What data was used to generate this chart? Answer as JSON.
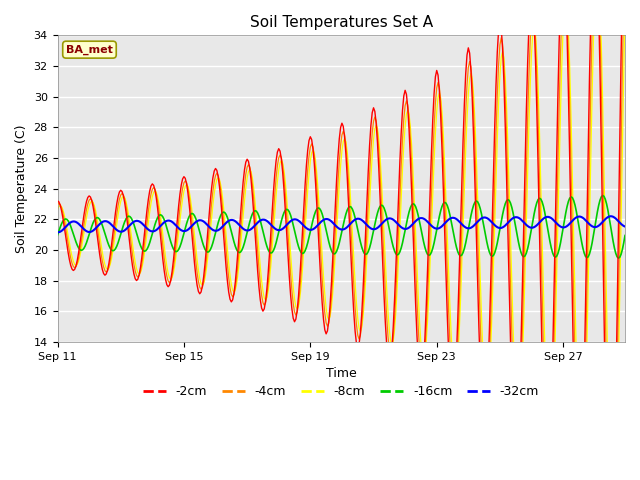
{
  "title": "Soil Temperatures Set A",
  "xlabel": "Time",
  "ylabel": "Soil Temperature (C)",
  "ylim": [
    14,
    34
  ],
  "yticks": [
    14,
    16,
    18,
    20,
    22,
    24,
    26,
    28,
    30,
    32,
    34
  ],
  "plot_bg_color": "#e8e8e8",
  "fig_bg_color": "#ffffff",
  "annotation_text": "BA_met",
  "annotation_box_facecolor": "#ffffcc",
  "annotation_box_edgecolor": "#999900",
  "annotation_text_color": "#8B0000",
  "series_colors": {
    "-2cm": "#ff0000",
    "-4cm": "#ff8800",
    "-8cm": "#ffff00",
    "-16cm": "#00cc00",
    "-32cm": "#0000ff"
  },
  "n_points": 432,
  "legend_colors": [
    "#ff0000",
    "#ff8800",
    "#ffff00",
    "#00cc00",
    "#0000ff"
  ],
  "legend_labels": [
    "-2cm",
    "-4cm",
    "-8cm",
    "-16cm",
    "-32cm"
  ],
  "x_tick_labels": [
    "Sep 11",
    "Sep 15",
    "Sep 19",
    "Sep 23",
    "Sep 27"
  ],
  "x_tick_positions": [
    0,
    96,
    192,
    288,
    384
  ]
}
